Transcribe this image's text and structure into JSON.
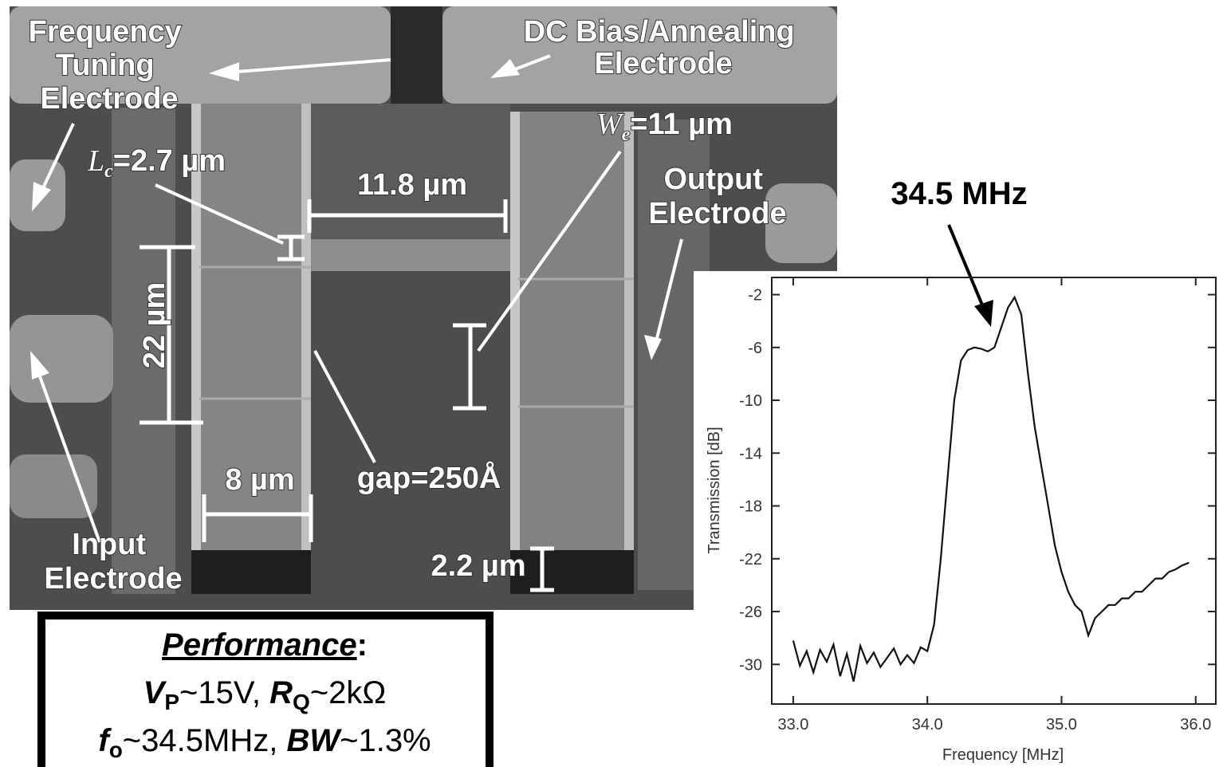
{
  "sem_labels": {
    "tuning": [
      "Frequency",
      "Tuning",
      "Electrode"
    ],
    "dc_bias": [
      "DC Bias/Annealing",
      "Electrode"
    ],
    "lc": {
      "symbol": "L",
      "sub": "c",
      "text": "=2.7 µm"
    },
    "we": {
      "symbol": "W",
      "sub": "e",
      "text": "=11 µm"
    },
    "span": "11.8 µm",
    "output": [
      "Output",
      "Electrode"
    ],
    "height": "22 µm",
    "width": "8 µm",
    "gap": "gap=250Å",
    "anchor": "2.2 µm",
    "input": [
      "Input",
      "Electrode"
    ]
  },
  "performance": {
    "title": "Performance",
    "colon": ":",
    "line1": [
      "V",
      "P",
      "~15V, ",
      "R",
      "Q",
      "~2kΩ"
    ],
    "line2": [
      "f",
      "o",
      "~34.5MHz, ",
      "BW",
      "~1.3%"
    ]
  },
  "chart_data": {
    "type": "line",
    "annotation": "34.5 MHz",
    "xlabel": "Frequency [MHz]",
    "ylabel": "Transmission [dB]",
    "color": "#111111",
    "grid": false,
    "xlim": [
      32.84,
      36.15
    ],
    "ylim": [
      -33,
      -0.7
    ],
    "xticks": [
      {
        "value": 33,
        "label": "33.0"
      },
      {
        "value": 34,
        "label": "34.0"
      },
      {
        "value": 35,
        "label": "35.0"
      },
      {
        "value": 36,
        "label": "36.0"
      }
    ],
    "yticks": [
      -2,
      -6,
      -10,
      -14,
      -18,
      -22,
      -26,
      -30
    ],
    "x": [
      33.0,
      33.05,
      33.1,
      33.15,
      33.2,
      33.25,
      33.3,
      33.35,
      33.4,
      33.45,
      33.5,
      33.55,
      33.6,
      33.65,
      33.7,
      33.75,
      33.8,
      33.85,
      33.9,
      33.95,
      34.0,
      34.05,
      34.1,
      34.15,
      34.2,
      34.25,
      34.3,
      34.35,
      34.4,
      34.45,
      34.5,
      34.55,
      34.6,
      34.65,
      34.7,
      34.75,
      34.8,
      34.85,
      34.9,
      34.95,
      35.0,
      35.05,
      35.1,
      35.15,
      35.2,
      35.25,
      35.3,
      35.35,
      35.4,
      35.45,
      35.5,
      35.55,
      35.6,
      35.65,
      35.7,
      35.75,
      35.8,
      35.85,
      35.9,
      35.95
    ],
    "values": [
      -28.2,
      -30.1,
      -29.0,
      -30.6,
      -28.9,
      -29.8,
      -28.5,
      -30.9,
      -29.2,
      -31.3,
      -28.6,
      -29.9,
      -29.1,
      -30.2,
      -29.5,
      -28.8,
      -30.0,
      -29.3,
      -29.9,
      -28.7,
      -29.0,
      -27.0,
      -22.0,
      -16.0,
      -10.0,
      -7.0,
      -6.2,
      -6.0,
      -6.1,
      -6.3,
      -6.0,
      -4.5,
      -3.0,
      -2.2,
      -3.5,
      -8.0,
      -12.0,
      -15.0,
      -18.0,
      -21.0,
      -23.0,
      -24.5,
      -25.5,
      -26.0,
      -27.8,
      -26.5,
      -26.0,
      -25.5,
      -25.5,
      -25.0,
      -25.0,
      -24.5,
      -24.5,
      -24.0,
      -23.5,
      -23.5,
      -23.0,
      -22.8,
      -22.5,
      -22.3
    ]
  }
}
